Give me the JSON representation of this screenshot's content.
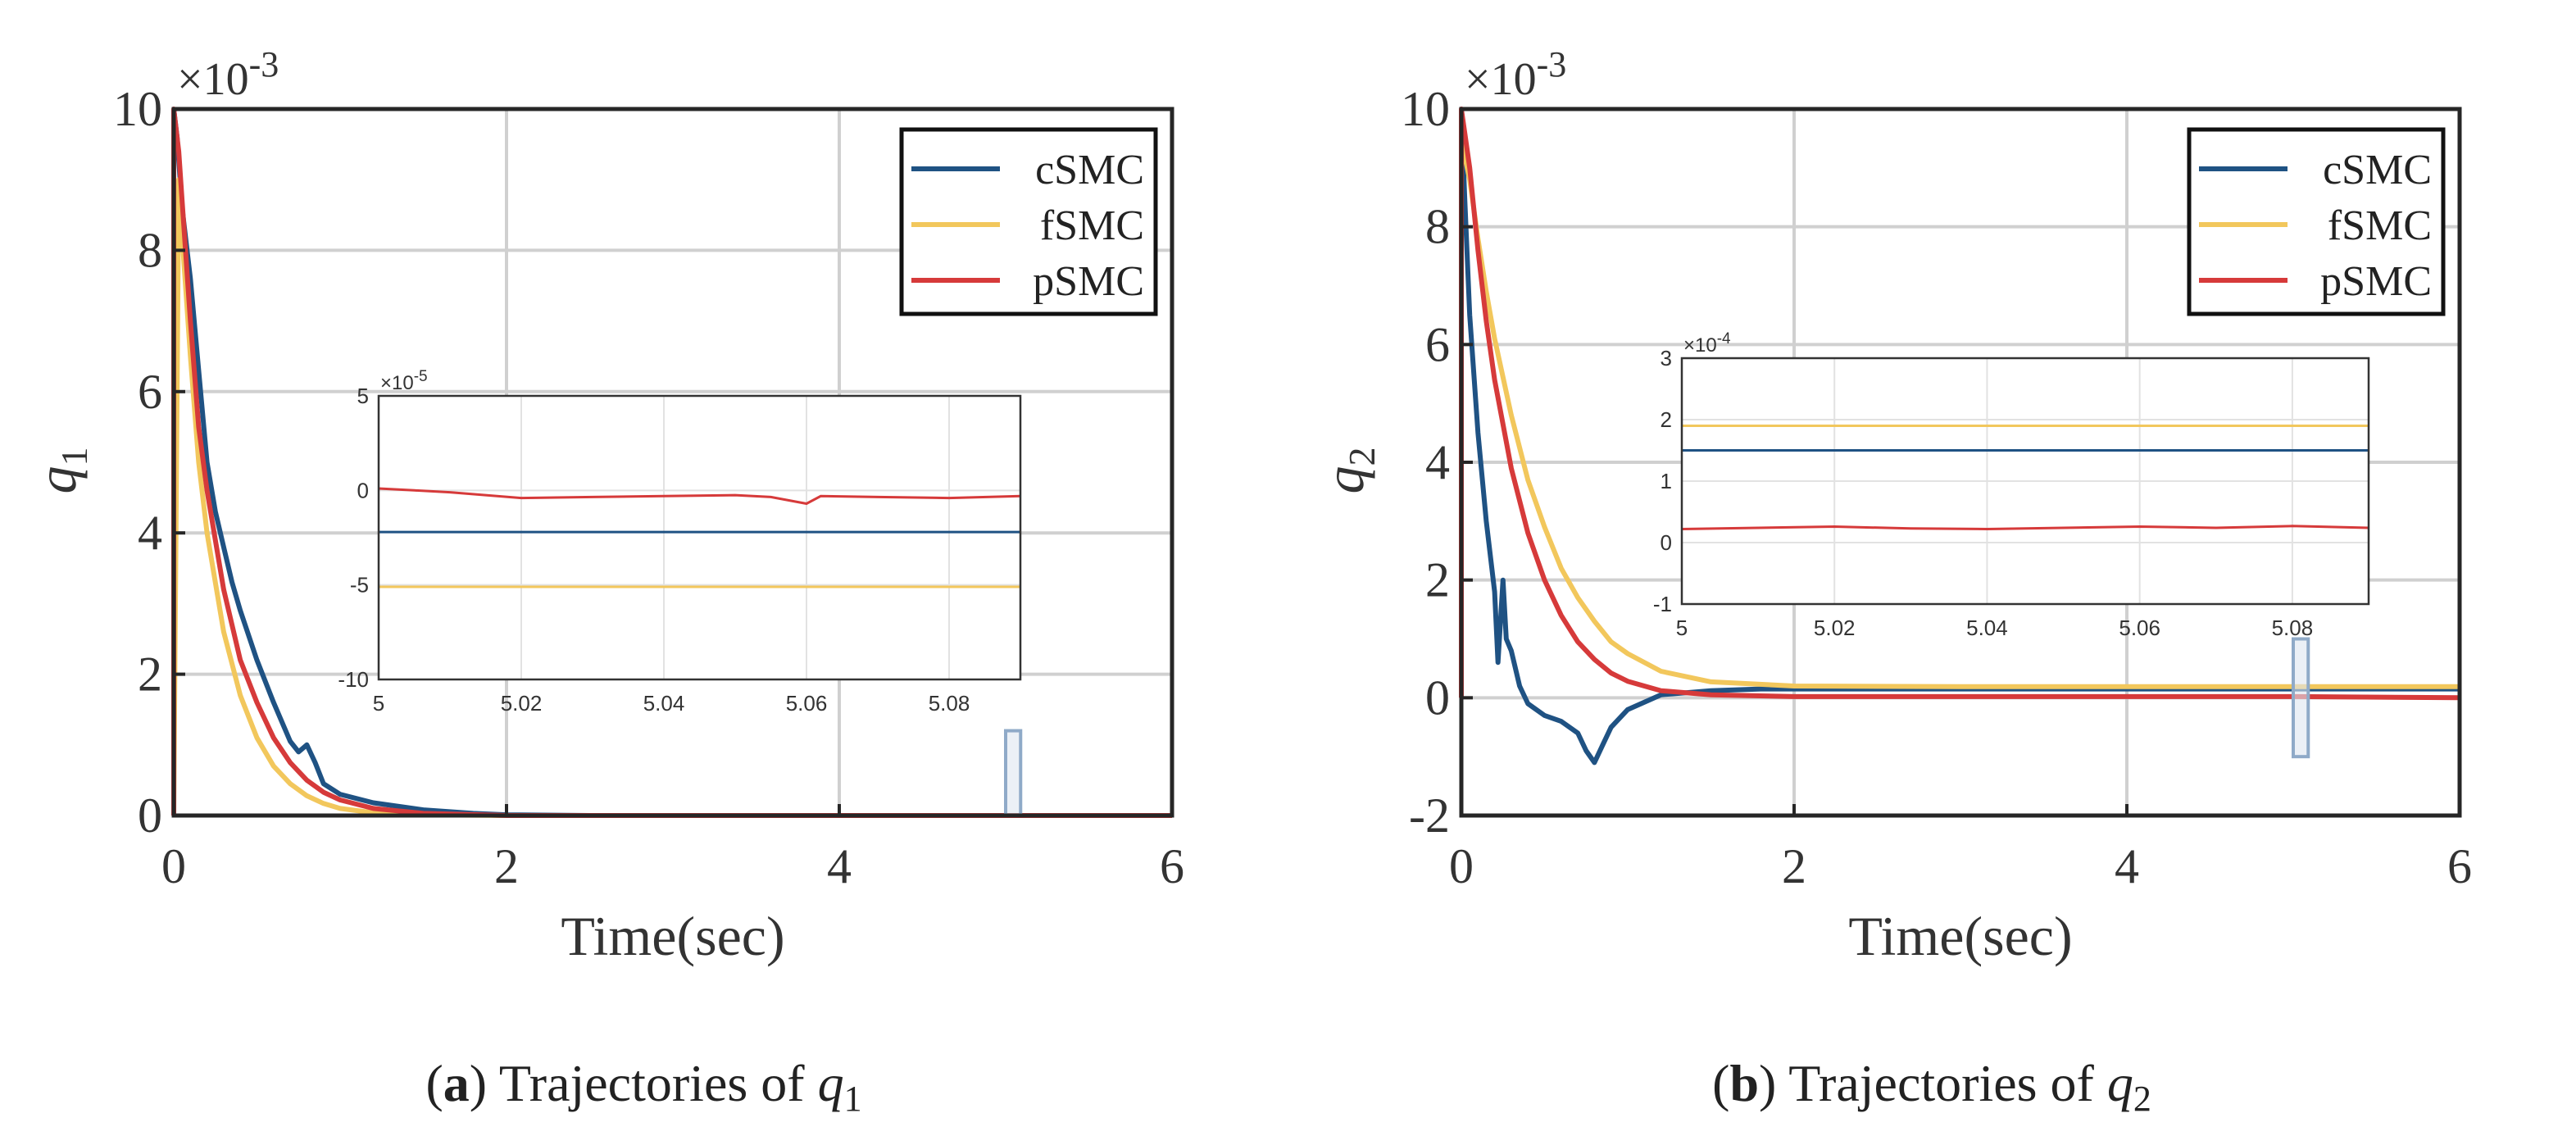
{
  "colors": {
    "cSMC": "#1f5283",
    "fSMC": "#f2c75c",
    "pSMC": "#d63a3a",
    "grid": "#d0d0d0",
    "axis": "#262626",
    "zoom_box": "#8faac8"
  },
  "chart_data": [
    {
      "type": "line",
      "panel": "a",
      "caption": {
        "label": "a",
        "text": " Trajectories of ",
        "var": "q",
        "sub": "1"
      },
      "xlabel": "Time(sec)",
      "ylabel_var": "q",
      "ylabel_sub": "1",
      "exponent_label": "×10",
      "exponent_power": "-3",
      "xlim": [
        0,
        6
      ],
      "ylim": [
        0,
        10
      ],
      "xticks": [
        0,
        2,
        4,
        6
      ],
      "yticks": [
        0,
        2,
        4,
        6,
        8,
        10
      ],
      "grid": true,
      "legend": {
        "position": "top-right",
        "entries": [
          "cSMC",
          "fSMC",
          "pSMC"
        ]
      },
      "series": [
        {
          "name": "cSMC",
          "x": [
            0,
            0.02,
            0.05,
            0.1,
            0.15,
            0.2,
            0.25,
            0.3,
            0.35,
            0.4,
            0.5,
            0.6,
            0.7,
            0.75,
            0.8,
            0.85,
            0.9,
            1.0,
            1.2,
            1.5,
            1.8,
            2.0,
            2.5,
            3,
            4,
            5,
            6
          ],
          "y": [
            10,
            9.6,
            8.6,
            7.6,
            6.3,
            5.0,
            4.3,
            3.8,
            3.3,
            2.9,
            2.2,
            1.6,
            1.05,
            0.9,
            1.0,
            0.75,
            0.45,
            0.3,
            0.18,
            0.08,
            0.03,
            0.01,
            0.0,
            0.0,
            0.0,
            0.0,
            0.0
          ]
        },
        {
          "name": "fSMC",
          "x": [
            0,
            0.03,
            0.05,
            0.1,
            0.15,
            0.2,
            0.3,
            0.4,
            0.5,
            0.6,
            0.7,
            0.8,
            0.9,
            1.0,
            1.2,
            1.5,
            2,
            3,
            4,
            5,
            6
          ],
          "y": [
            0,
            9.0,
            8.2,
            6.5,
            5.0,
            4.0,
            2.6,
            1.7,
            1.1,
            0.7,
            0.45,
            0.28,
            0.17,
            0.1,
            0.04,
            0.01,
            0.0,
            0.0,
            0.0,
            0.0,
            0.0
          ]
        },
        {
          "name": "pSMC",
          "x": [
            0,
            0.0,
            0.03,
            0.05,
            0.1,
            0.15,
            0.2,
            0.3,
            0.4,
            0.5,
            0.6,
            0.7,
            0.8,
            0.9,
            1.0,
            1.2,
            1.5,
            2,
            3,
            4,
            5,
            6
          ],
          "y": [
            0,
            10,
            9.4,
            8.7,
            7.0,
            5.5,
            4.6,
            3.2,
            2.2,
            1.6,
            1.1,
            0.75,
            0.5,
            0.33,
            0.22,
            0.1,
            0.03,
            0.0,
            0.0,
            0.0,
            0.0,
            0.0
          ]
        }
      ],
      "zoom_box": {
        "x": [
          5.0,
          5.09
        ],
        "y": [
          0,
          1.2
        ]
      },
      "inset": {
        "exponent_label": "×10",
        "exponent_power": "-5",
        "xlim": [
          5,
          5.09
        ],
        "ylim": [
          -10,
          5
        ],
        "xticks": [
          5,
          5.02,
          5.04,
          5.06,
          5.08
        ],
        "xtick_labels": [
          "5",
          "5.02",
          "5.04",
          "5.06",
          "5.08"
        ],
        "yticks": [
          -10,
          -5,
          0,
          5
        ],
        "ytick_labels": [
          "-10",
          "-5",
          "0",
          "5"
        ],
        "series": [
          {
            "name": "cSMC",
            "x": [
              5,
              5.09
            ],
            "y": [
              -2.2,
              -2.2
            ]
          },
          {
            "name": "fSMC",
            "x": [
              5,
              5.09
            ],
            "y": [
              -5.1,
              -5.1
            ]
          },
          {
            "name": "pSMC",
            "x": [
              5,
              5.005,
              5.01,
              5.02,
              5.03,
              5.04,
              5.05,
              5.055,
              5.06,
              5.062,
              5.07,
              5.08,
              5.09
            ],
            "y": [
              0.1,
              0.0,
              -0.1,
              -0.4,
              -0.35,
              -0.3,
              -0.25,
              -0.35,
              -0.7,
              -0.3,
              -0.35,
              -0.4,
              -0.3
            ]
          }
        ]
      }
    },
    {
      "type": "line",
      "panel": "b",
      "caption": {
        "label": "b",
        "text": " Trajectories of ",
        "var": "q",
        "sub": "2"
      },
      "xlabel": "Time(sec)",
      "ylabel_var": "q",
      "ylabel_sub": "2",
      "exponent_label": "×10",
      "exponent_power": "-3",
      "xlim": [
        0,
        6
      ],
      "ylim": [
        -2,
        10
      ],
      "xticks": [
        0,
        2,
        4,
        6
      ],
      "yticks": [
        -2,
        0,
        2,
        4,
        6,
        8,
        10
      ],
      "grid": true,
      "legend": {
        "position": "top-right",
        "entries": [
          "cSMC",
          "fSMC",
          "pSMC"
        ]
      },
      "series": [
        {
          "name": "cSMC",
          "x": [
            0,
            0.02,
            0.05,
            0.1,
            0.15,
            0.2,
            0.22,
            0.25,
            0.27,
            0.3,
            0.35,
            0.4,
            0.5,
            0.6,
            0.7,
            0.75,
            0.8,
            0.85,
            0.9,
            1.0,
            1.2,
            1.5,
            1.8,
            2.0,
            3,
            4,
            5,
            6
          ],
          "y": [
            10,
            8.5,
            6.5,
            4.5,
            3.0,
            1.8,
            0.6,
            2.0,
            1.0,
            0.8,
            0.2,
            -0.1,
            -0.3,
            -0.4,
            -0.6,
            -0.9,
            -1.1,
            -0.8,
            -0.5,
            -0.2,
            0.05,
            0.12,
            0.15,
            0.15,
            0.15,
            0.15,
            0.15,
            0.15
          ]
        },
        {
          "name": "fSMC",
          "x": [
            0,
            0.02,
            0.05,
            0.1,
            0.15,
            0.2,
            0.3,
            0.4,
            0.5,
            0.6,
            0.7,
            0.8,
            0.9,
            1.0,
            1.2,
            1.5,
            2,
            3,
            4,
            5,
            6
          ],
          "y": [
            9.5,
            9.2,
            8.8,
            7.8,
            6.9,
            6.1,
            4.8,
            3.7,
            2.9,
            2.2,
            1.7,
            1.3,
            0.95,
            0.75,
            0.45,
            0.27,
            0.2,
            0.19,
            0.19,
            0.19,
            0.19
          ]
        },
        {
          "name": "pSMC",
          "x": [
            0,
            0.0,
            0.02,
            0.05,
            0.1,
            0.15,
            0.2,
            0.3,
            0.4,
            0.5,
            0.6,
            0.7,
            0.8,
            0.9,
            1.0,
            1.2,
            1.5,
            2,
            3,
            4,
            5,
            6
          ],
          "y": [
            0,
            10,
            9.6,
            9.0,
            7.6,
            6.4,
            5.4,
            3.9,
            2.8,
            2.0,
            1.4,
            0.95,
            0.65,
            0.42,
            0.28,
            0.12,
            0.05,
            0.02,
            0.02,
            0.02,
            0.02,
            0.0
          ]
        }
      ],
      "zoom_box": {
        "x": [
          5.0,
          5.09
        ],
        "y": [
          -1.0,
          1.0
        ]
      },
      "inset": {
        "exponent_label": "×10",
        "exponent_power": "-4",
        "xlim": [
          5,
          5.09
        ],
        "ylim": [
          -1,
          3
        ],
        "xticks": [
          5,
          5.02,
          5.04,
          5.06,
          5.08
        ],
        "xtick_labels": [
          "5",
          "5.02",
          "5.04",
          "5.06",
          "5.08"
        ],
        "yticks": [
          -1,
          0,
          1,
          2,
          3
        ],
        "ytick_labels": [
          "-1",
          "0",
          "1",
          "2",
          "3"
        ],
        "series": [
          {
            "name": "cSMC",
            "x": [
              5,
              5.09
            ],
            "y": [
              1.5,
              1.5
            ]
          },
          {
            "name": "fSMC",
            "x": [
              5,
              5.09
            ],
            "y": [
              1.9,
              1.9
            ]
          },
          {
            "name": "pSMC",
            "x": [
              5,
              5.01,
              5.02,
              5.03,
              5.04,
              5.05,
              5.06,
              5.07,
              5.08,
              5.09
            ],
            "y": [
              0.22,
              0.24,
              0.26,
              0.23,
              0.22,
              0.24,
              0.26,
              0.24,
              0.27,
              0.24
            ]
          }
        ]
      }
    }
  ]
}
